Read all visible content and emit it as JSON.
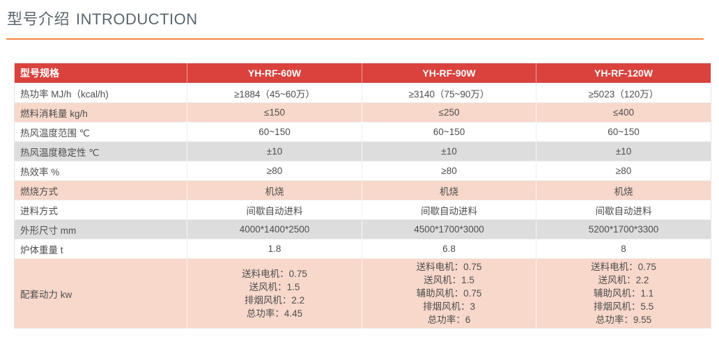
{
  "header": {
    "title_zh": "型号介绍",
    "title_en": "INTRODUCTION"
  },
  "colors": {
    "header_red": "#d9423d",
    "row_pink": "#f8d8cb",
    "row_gray": "#dddddd",
    "accent_orange": "#ef8437",
    "title_gray": "#5b656d",
    "body_text": "#4d4d4d"
  },
  "table": {
    "columns": [
      "型号规格",
      "YH-RF-60W",
      "YH-RF-90W",
      "YH-RF-120W"
    ],
    "rows": [
      {
        "label": "热功率 MJ/h（kcal/h)",
        "tone": "plain",
        "values": [
          "≥1884（45~60万）",
          "≥3140（75~90万）",
          "≥5023（120万）"
        ]
      },
      {
        "label": "燃料消耗量 kg/h",
        "tone": "pink",
        "values": [
          "≤150",
          "≤250",
          "≤400"
        ]
      },
      {
        "label": "热风温度范围 ℃",
        "tone": "plain",
        "values": [
          "60~150",
          "60~150",
          "60~150"
        ]
      },
      {
        "label": "热风温度稳定性 ℃",
        "tone": "gray",
        "values": [
          "±10",
          "±10",
          "±10"
        ]
      },
      {
        "label": "热效率 %",
        "tone": "plain",
        "values": [
          "≥80",
          "≥80",
          "≥80"
        ]
      },
      {
        "label": "燃烧方式",
        "tone": "pink",
        "values": [
          "机烧",
          "机烧",
          "机烧"
        ]
      },
      {
        "label": "进料方式",
        "tone": "plain",
        "values": [
          "间歇自动进料",
          "间歇自动进料",
          "间歇自动进料"
        ]
      },
      {
        "label": "外形尺寸 mm",
        "tone": "gray",
        "values": [
          "4000*1400*2500",
          "4500*1700*3000",
          "5200*1700*3300"
        ]
      },
      {
        "label": "炉体重量 t",
        "tone": "plain",
        "values": [
          "1.8",
          "6.8",
          "8"
        ]
      },
      {
        "label": "配套动力 kw",
        "tone": "pink",
        "values": [
          [
            "送料电机：0.75",
            "送风机：1.5",
            "排烟风机：2.2",
            "总功率：4.45"
          ],
          [
            "送料电机：0.75",
            "送风机：1.5",
            "辅助风机：0.75",
            "排烟风机：3",
            "总功率：6"
          ],
          [
            "送料电机：0.75",
            "送风机：2.2",
            "辅助风机：1.1",
            "排烟风机：5.5",
            "总功率：9.55"
          ]
        ]
      }
    ]
  }
}
